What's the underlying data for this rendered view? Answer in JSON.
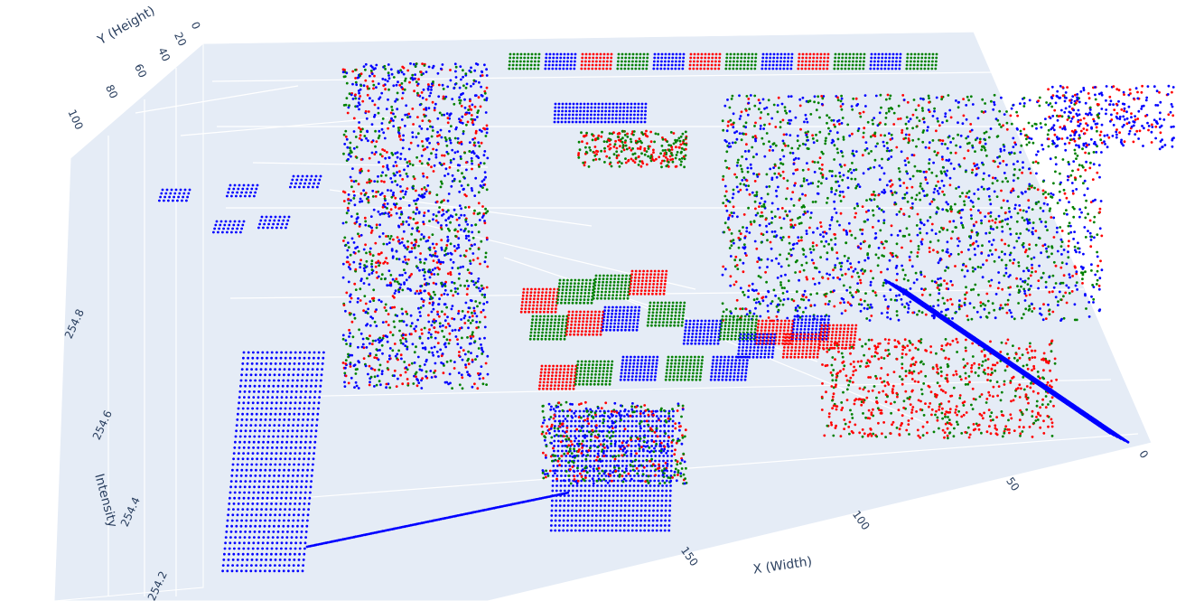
{
  "chart_data": {
    "type": "scatter3d",
    "title": "",
    "x_axis": {
      "title": "X (Width)",
      "range": [
        0,
        170
      ],
      "ticks": [
        0,
        50,
        100,
        150
      ]
    },
    "y_axis": {
      "title": "Y (Height)",
      "range": [
        0,
        110
      ],
      "ticks": [
        0,
        20,
        40,
        60,
        80,
        100
      ]
    },
    "z_axis": {
      "title": "Intensity",
      "range": [
        254.2,
        254.9
      ],
      "ticks": [
        "254.2",
        "254.4",
        "254.6",
        "254.8"
      ]
    },
    "series": [
      {
        "color": "#0000ff"
      },
      {
        "color": "#ff0000"
      },
      {
        "color": "#008000"
      }
    ],
    "scene_background": "#e5ecf6",
    "grid": true,
    "legend": false,
    "marker_size": 2
  }
}
